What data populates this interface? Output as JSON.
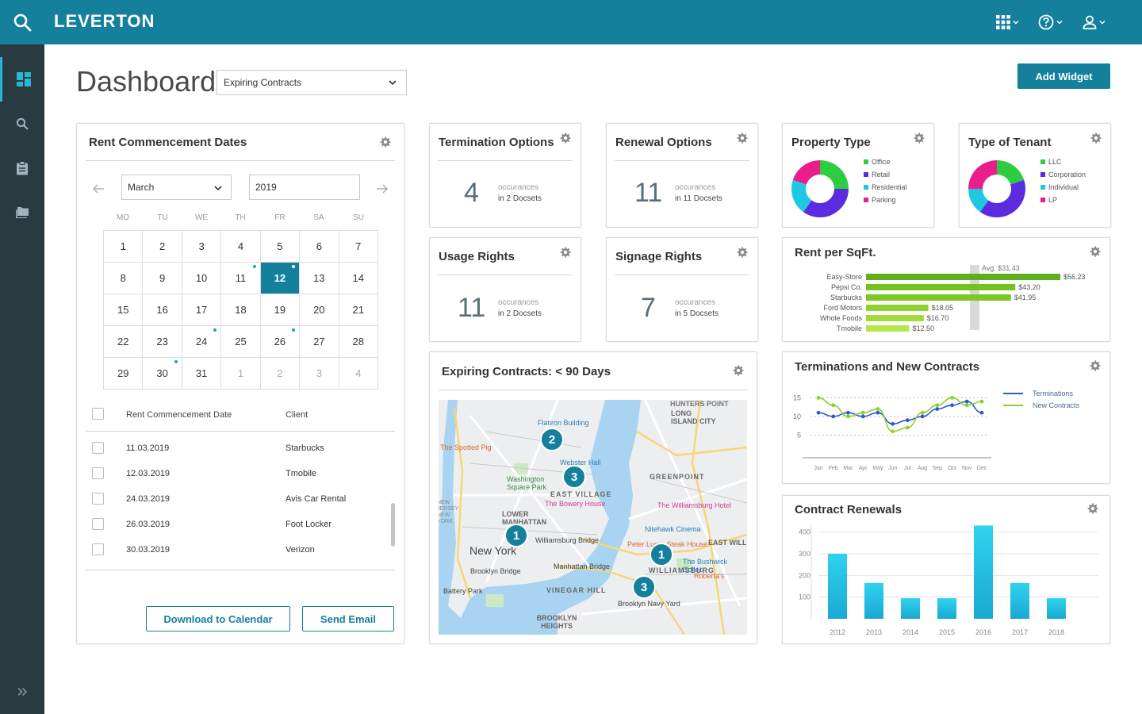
{
  "app": {
    "logo": "LEVERTON"
  },
  "topbar": {
    "icons": [
      "apps-grid-icon",
      "help-icon",
      "user-icon"
    ]
  },
  "sidebar": {
    "items": [
      "dashboard-icon",
      "search-icon",
      "clipboard-icon",
      "folder-icon"
    ],
    "expand_icon": "double-chevron-right-icon"
  },
  "header": {
    "title": "Dashboard",
    "filter_value": "Expiring Contracts",
    "add_widget_label": "Add Widget"
  },
  "calendar": {
    "title": "Rent Commencement Dates",
    "month": "March",
    "year": "2019",
    "weekdays": [
      "MO",
      "TU",
      "WE",
      "TH",
      "FR",
      "SA",
      "SU"
    ],
    "days": [
      [
        "1",
        "2",
        "3",
        "4",
        "5",
        "6",
        "7"
      ],
      [
        "8",
        "9",
        "10",
        "11",
        "12",
        "13",
        "14"
      ],
      [
        "15",
        "16",
        "17",
        "18",
        "19",
        "20",
        "21"
      ],
      [
        "22",
        "23",
        "24",
        "25",
        "26",
        "27",
        "28"
      ],
      [
        "29",
        "30",
        "31",
        "1",
        "2",
        "3",
        "4"
      ]
    ],
    "selected_day": "12",
    "table_headers": {
      "date": "Rent Commencement Date",
      "client": "Client"
    },
    "rows": [
      {
        "date": "11.03.2019",
        "client": "Starbucks"
      },
      {
        "date": "12.03.2019",
        "client": "Tmobile"
      },
      {
        "date": "24.03.2019",
        "client": "Avis Car Rental"
      },
      {
        "date": "26.03.2019",
        "client": "Foot Locker"
      },
      {
        "date": "30.03.2019",
        "client": "Verizon"
      }
    ],
    "download_label": "Download to Calendar",
    "email_label": "Send Email"
  },
  "stats": [
    {
      "title": "Termination Options",
      "value": "4",
      "label1": "occurances",
      "label2": "in 2 Docsets"
    },
    {
      "title": "Renewal Options",
      "value": "11",
      "label1": "occurances",
      "label2": "in 11 Docsets"
    },
    {
      "title": "Usage Rights",
      "value": "11",
      "label1": "occurances",
      "label2": "in 2 Docsets"
    },
    {
      "title": "Signage Rights",
      "value": "7",
      "label1": "occurances",
      "label2": "in 5 Docsets"
    }
  ],
  "property_type": {
    "title": "Property Type",
    "legend": [
      "Office",
      "Retail",
      "Residential",
      "Parking"
    ]
  },
  "tenant_type": {
    "title": "Type of Tenant",
    "legend": [
      "LLC",
      "Corporation",
      "Individual",
      "LP"
    ]
  },
  "map": {
    "title": "Expiring Contracts: < 90 Days",
    "markers": [
      "2",
      "3",
      "1",
      "1",
      "3"
    ],
    "labels": [
      "Flatiron Building",
      "The Spotted Pig",
      "Webster Hall",
      "Washington Square Park",
      "EAST VILLAGE",
      "The Bowery House",
      "LOWER MANHATTAN",
      "New York",
      "Williamsburg Bridge",
      "Manhattan Bridge",
      "Brooklyn Bridge",
      "Battery Park",
      "VINEGAR HILL",
      "BROOKLYN HEIGHTS",
      "Nitehawk Cinema",
      "Peter Luger Steak House",
      "WILLIAMSBURG",
      "The Bushwick Collec",
      "Roberta's",
      "Brooklyn Navy Yard",
      "The Williamsburg Hotel",
      "GREENPOINT",
      "LONG ISLAND CITY",
      "HUNTERS POINT",
      "EAST WILLIAMS",
      "NEW JERSEY NEW YORK"
    ]
  },
  "chart_data": [
    {
      "type": "pie",
      "title": "Property Type",
      "categories": [
        "Office",
        "Retail",
        "Residential",
        "Parking"
      ],
      "values": [
        25,
        35,
        20,
        20
      ],
      "colors": [
        "#2ecc40",
        "#5b2be0",
        "#1ec8e0",
        "#e91e8c"
      ]
    },
    {
      "type": "pie",
      "title": "Type of Tenant",
      "categories": [
        "LLC",
        "Corporation",
        "Individual",
        "LP"
      ],
      "values": [
        20,
        40,
        15,
        25
      ],
      "colors": [
        "#2ecc40",
        "#5b2be0",
        "#1ec8e0",
        "#e91e8c"
      ]
    },
    {
      "type": "bar",
      "title": "Rent per SqFt.",
      "orientation": "horizontal",
      "categories": [
        "Easy-Store",
        "Pepsi Co.",
        "Starbucks",
        "Ford Motors",
        "Whole Foods",
        "Tmobile"
      ],
      "values": [
        56.23,
        43.2,
        41.95,
        18.05,
        16.7,
        12.5
      ],
      "value_labels": [
        "$56.23",
        "$43.20",
        "$41.95",
        "$18.05",
        "$16.70",
        "$12.50"
      ],
      "average": 31.43,
      "average_label": "Avg. $31.43",
      "xlim": [
        0,
        56.23
      ]
    },
    {
      "type": "line",
      "title": "Terminations and New Contracts",
      "categories": [
        "Jan",
        "Feb",
        "Mar",
        "Apr",
        "May",
        "Jun",
        "Jul",
        "Aug",
        "Sep",
        "Oct",
        "Nov",
        "Dec"
      ],
      "series": [
        {
          "name": "Terminations",
          "values": [
            11,
            10,
            11,
            10,
            11,
            8,
            9,
            10,
            12,
            13,
            14,
            11
          ],
          "color": "#2a58d6"
        },
        {
          "name": "New Contracts",
          "values": [
            15,
            13,
            10,
            11,
            12,
            6,
            7,
            11,
            13,
            15,
            13,
            14
          ],
          "color": "#8cd12a"
        }
      ],
      "yticks": [
        "5",
        "10",
        "15"
      ],
      "ylim": [
        0,
        17
      ]
    },
    {
      "type": "bar",
      "title": "Contract Renewals",
      "categories": [
        "2012",
        "2013",
        "2014",
        "2015",
        "2016",
        "2017",
        "2018"
      ],
      "values": [
        300,
        165,
        95,
        95,
        430,
        165,
        95
      ],
      "yticks": [
        "100",
        "200",
        "300",
        "400"
      ],
      "ylim": [
        0,
        450
      ]
    }
  ]
}
